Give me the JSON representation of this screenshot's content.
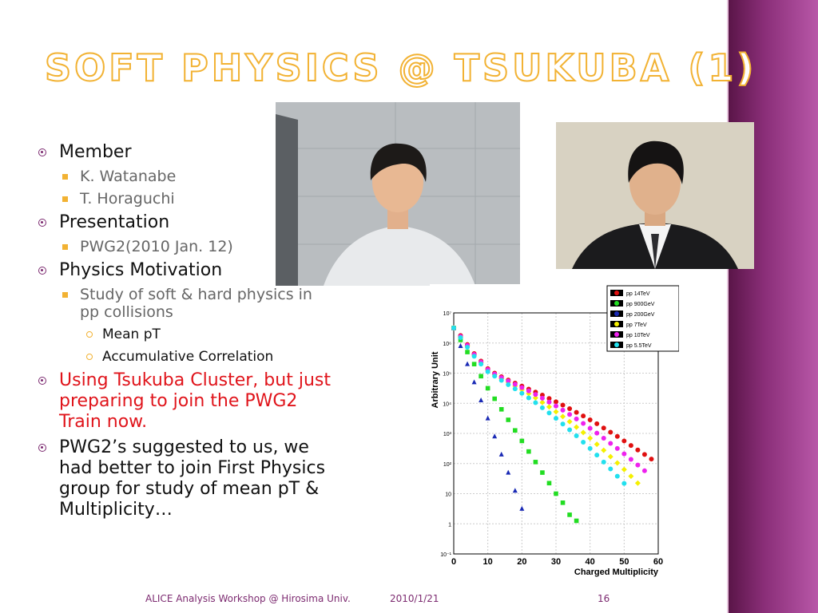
{
  "slide": {
    "title": "Soft Physics @ Tsukuba (1)",
    "accent_color": "#f2b233",
    "band_color": "#8a2e78",
    "bullets": [
      {
        "text": "Member",
        "level": 1
      },
      {
        "text": "K. Watanabe",
        "level": 2
      },
      {
        "text": "T. Horaguchi",
        "level": 2
      },
      {
        "text": "Presentation",
        "level": 1
      },
      {
        "text": "PWG2(2010 Jan. 12)",
        "level": 2
      },
      {
        "text": "Physics Motivation",
        "level": 1
      },
      {
        "text": "Study of soft & hard physics in pp collisions",
        "level": 2
      },
      {
        "text": "Mean pT",
        "level": 3
      },
      {
        "text": "Accumulative Correlation",
        "level": 3
      },
      {
        "text": "Using Tsukuba Cluster, but just preparing to join the PWG2 Train now.",
        "level": 1,
        "color": "#e0141b"
      },
      {
        "text": "PWG2’s suggested to us, we had better to join First Physics group for study of mean pT & Multiplicity…",
        "level": 1
      }
    ]
  },
  "footer": {
    "event": "ALICE Analysis Workshop @ Hirosima Univ.",
    "date": "2010/1/21",
    "page": "16"
  },
  "photos": [
    {
      "name": "K. Watanabe photo"
    },
    {
      "name": "T. Horaguchi photo"
    }
  ],
  "chart_data": {
    "type": "scatter",
    "xlabel": "Charged Multiplicity",
    "ylabel": "Arbitrary Unit",
    "xlim": [
      0,
      60
    ],
    "ylim_log10": [
      -1,
      7
    ],
    "x_ticks": [
      "0",
      "10",
      "20",
      "30",
      "40",
      "50",
      "60"
    ],
    "y_ticks": [
      "10⁻¹",
      "1",
      "10",
      "10²",
      "10³",
      "10⁴",
      "10⁵",
      "10⁶",
      "10⁷"
    ],
    "y_tick_values": [
      -1,
      0,
      1,
      2,
      3,
      4,
      5,
      6,
      7
    ],
    "grid": true,
    "legend_position": "top-right",
    "log_y": true,
    "series": [
      {
        "name": "pp 14TeV",
        "color": "#e01010",
        "marker": "circle",
        "x": [
          0,
          2,
          4,
          6,
          8,
          10,
          12,
          14,
          16,
          18,
          20,
          22,
          24,
          26,
          28,
          30,
          32,
          34,
          36,
          38,
          40,
          42,
          44,
          46,
          48,
          50,
          52,
          54,
          56,
          58
        ],
        "y": [
          6.5,
          6.25,
          5.95,
          5.65,
          5.4,
          5.15,
          5.0,
          4.88,
          4.77,
          4.67,
          4.57,
          4.47,
          4.37,
          4.27,
          4.16,
          4.05,
          3.94,
          3.82,
          3.7,
          3.58,
          3.45,
          3.32,
          3.18,
          3.04,
          2.9,
          2.75,
          2.6,
          2.45,
          2.3,
          2.15
        ]
      },
      {
        "name": "pp 900GeV",
        "color": "#22dd22",
        "marker": "square",
        "x": [
          0,
          2,
          4,
          6,
          8,
          10,
          12,
          14,
          16,
          18,
          20,
          22,
          24,
          26,
          28,
          30,
          32,
          34,
          36
        ],
        "y": [
          6.5,
          6.1,
          5.7,
          5.3,
          4.9,
          4.5,
          4.15,
          3.8,
          3.45,
          3.1,
          2.75,
          2.4,
          2.05,
          1.7,
          1.35,
          1.0,
          0.7,
          0.3,
          0.1
        ]
      },
      {
        "name": "pp 200GeV",
        "color": "#1a2ab5",
        "marker": "triangle",
        "x": [
          0,
          2,
          4,
          6,
          8,
          10,
          12,
          14,
          16,
          18,
          20
        ],
        "y": [
          6.5,
          5.9,
          5.3,
          4.7,
          4.1,
          3.5,
          2.9,
          2.3,
          1.7,
          1.1,
          0.5
        ]
      },
      {
        "name": "pp 7TeV",
        "color": "#f5f000",
        "marker": "diamond",
        "x": [
          0,
          2,
          4,
          6,
          8,
          10,
          12,
          14,
          16,
          18,
          20,
          22,
          24,
          26,
          28,
          30,
          32,
          34,
          36,
          38,
          40,
          42,
          44,
          46,
          48,
          50,
          52,
          54
        ],
        "y": [
          6.5,
          6.2,
          5.9,
          5.6,
          5.35,
          5.1,
          4.95,
          4.82,
          4.7,
          4.57,
          4.45,
          4.32,
          4.18,
          4.03,
          3.88,
          3.72,
          3.56,
          3.39,
          3.21,
          3.03,
          2.84,
          2.64,
          2.44,
          2.23,
          2.02,
          1.8,
          1.58,
          1.35
        ]
      },
      {
        "name": "pp 10TeV",
        "color": "#ee22ee",
        "marker": "circle",
        "x": [
          0,
          2,
          4,
          6,
          8,
          10,
          12,
          14,
          16,
          18,
          20,
          22,
          24,
          26,
          28,
          30,
          32,
          34,
          36,
          38,
          40,
          42,
          44,
          46,
          48,
          50,
          52,
          54,
          56
        ],
        "y": [
          6.5,
          6.22,
          5.92,
          5.62,
          5.37,
          5.12,
          4.97,
          4.85,
          4.74,
          4.63,
          4.52,
          4.41,
          4.29,
          4.17,
          4.04,
          3.91,
          3.77,
          3.63,
          3.48,
          3.33,
          3.17,
          3.01,
          2.84,
          2.67,
          2.5,
          2.32,
          2.14,
          1.95,
          1.76
        ]
      },
      {
        "name": "pp 5.5TeV",
        "color": "#22e0ee",
        "marker": "circle",
        "x": [
          0,
          2,
          4,
          6,
          8,
          10,
          12,
          14,
          16,
          18,
          20,
          22,
          24,
          26,
          28,
          30,
          32,
          34,
          36,
          38,
          40,
          42,
          44,
          46,
          48,
          50
        ],
        "y": [
          6.5,
          6.18,
          5.86,
          5.56,
          5.3,
          5.05,
          4.9,
          4.76,
          4.62,
          4.48,
          4.33,
          4.18,
          4.02,
          3.85,
          3.68,
          3.5,
          3.31,
          3.12,
          2.92,
          2.71,
          2.5,
          2.28,
          2.05,
          1.82,
          1.58,
          1.34
        ]
      }
    ]
  }
}
